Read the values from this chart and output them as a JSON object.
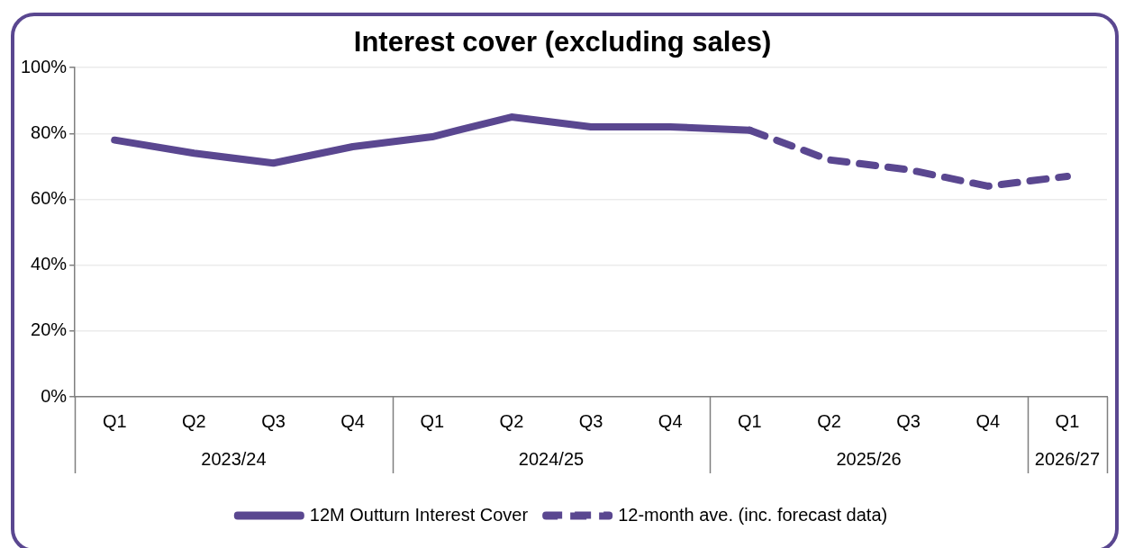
{
  "chart_data": {
    "type": "line",
    "title": "Interest cover (excluding sales)",
    "categories": [
      "Q1",
      "Q2",
      "Q3",
      "Q4",
      "Q1",
      "Q2",
      "Q3",
      "Q4",
      "Q1",
      "Q2",
      "Q3",
      "Q4",
      "Q1"
    ],
    "annotations": [
      "2023/24",
      "2024/25",
      "2025/26",
      "2026/27"
    ],
    "series": [
      {
        "name": "12M Outturn Interest Cover",
        "color": "#5a4790",
        "line_style": "solid",
        "values": [
          78,
          74,
          71,
          76,
          79,
          85,
          82,
          82,
          81,
          null,
          null,
          null,
          null
        ]
      },
      {
        "name": "12-month ave. (inc. forecast data)",
        "color": "#5a4790",
        "line_style": "dashed",
        "values": [
          null,
          null,
          null,
          null,
          null,
          null,
          null,
          null,
          81,
          72,
          69,
          64,
          67
        ]
      }
    ],
    "ylim": [
      0,
      100
    ],
    "yticks": [
      {
        "value": 0,
        "label": "0%"
      },
      {
        "value": 20,
        "label": "20%"
      },
      {
        "value": 40,
        "label": "40%"
      },
      {
        "value": 60,
        "label": "60%"
      },
      {
        "value": 80,
        "label": "80%"
      },
      {
        "value": 100,
        "label": "100%"
      }
    ],
    "grid": "y",
    "legend": "bottom",
    "marker": "none"
  }
}
